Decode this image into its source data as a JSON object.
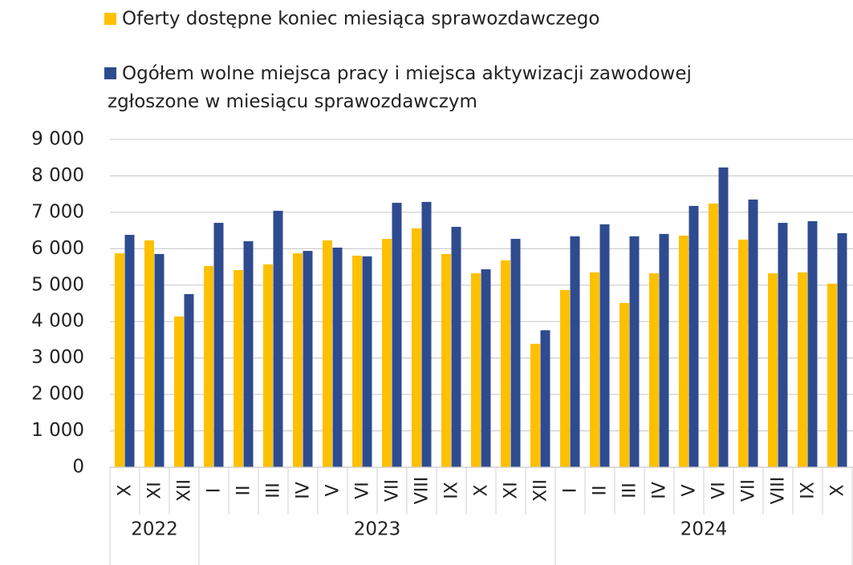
{
  "chart_data": {
    "type": "bar",
    "categories": [
      "X",
      "XI",
      "XII",
      "I",
      "II",
      "III",
      "IV",
      "V",
      "VI",
      "VII",
      "VIII",
      "IX",
      "X",
      "XI",
      "XII",
      "I",
      "II",
      "III",
      "IV",
      "V",
      "VI",
      "VII",
      "VIII",
      "IX",
      "X"
    ],
    "groups": [
      {
        "label": "2022",
        "span": 3
      },
      {
        "label": "2023",
        "span": 12
      },
      {
        "label": "2024",
        "span": 10
      }
    ],
    "series": [
      {
        "name": "Oferty dostępne koniec miesiąca sprawozdawczego",
        "color": "#ffc000",
        "values": [
          5875,
          6230,
          4140,
          5525,
          5415,
          5570,
          5875,
          6230,
          5810,
          6270,
          6560,
          5855,
          5325,
          5680,
          3390,
          4865,
          5350,
          4510,
          5325,
          6360,
          7240,
          6250,
          5325,
          5350,
          5040
        ]
      },
      {
        "name": "Ogółem wolne miejsca pracy i miejsca aktywizacji zawodowej zgłoszone w miesiącu sprawozdawczym",
        "color": "#2f4b8f",
        "values": [
          6380,
          5855,
          4755,
          6710,
          6205,
          7040,
          5940,
          6030,
          5790,
          7260,
          7285,
          6600,
          5435,
          6270,
          3760,
          6340,
          6670,
          6340,
          6405,
          7175,
          8230,
          7350,
          6710,
          6755,
          6425
        ]
      }
    ],
    "ylim": [
      0,
      9000
    ],
    "yticks": [
      0,
      {
        "value": 1000,
        "label": "1 000"
      },
      {
        "value": 2000,
        "label": "2 000"
      },
      {
        "value": 3000,
        "label": "3 000"
      },
      {
        "value": 4000,
        "label": "4 000"
      },
      {
        "value": 5000,
        "label": "5 000"
      },
      {
        "value": 6000,
        "label": "6 000"
      },
      {
        "value": 7000,
        "label": "7 000"
      },
      {
        "value": 8000,
        "label": "8 000"
      },
      {
        "value": 9000,
        "label": "9 000"
      }
    ],
    "grid": true
  }
}
